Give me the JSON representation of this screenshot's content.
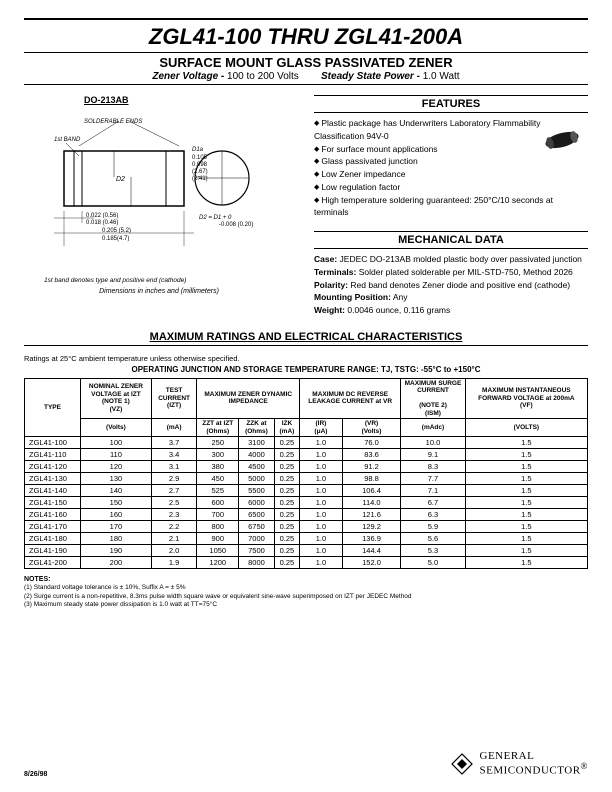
{
  "header": {
    "title": "ZGL41-100 THRU ZGL41-200A",
    "subtitle": "SURFACE MOUNT GLASS PASSIVATED ZENER",
    "spec1_label": "Zener Voltage -",
    "spec1_val": "100 to 200 Volts",
    "spec2_label": "Steady State Power -",
    "spec2_val": "1.0 Watt"
  },
  "package": {
    "label": "DO-213AB",
    "solderable": "SOLDERABLE ENDS",
    "first_band": "1st BAND",
    "d2_label": "D2",
    "d1a": "D1a",
    "dim1": "0.105",
    "dim2": "0.098",
    "dim3": "(2.67)",
    "dim4": "(2.41)",
    "w1": "0.022 (0.56)",
    "w2": "0.018 (0.46)",
    "len1": "0.205 (5.2)",
    "len2": "0.185(4.7)",
    "d2eq": "D2 = D1 + 0\n-0.008 (0.20)",
    "band_note": "1st band denotes type and positive end (cathode)",
    "dim_note": "Dimensions in inches and (millimeters)"
  },
  "features": {
    "title": "FEATURES",
    "items": [
      "Plastic package has Underwriters Laboratory Flammability Classification 94V-0",
      "For surface mount applications",
      "Glass passivated junction",
      "Low Zener impedance",
      "Low regulation factor",
      "High temperature soldering guaranteed: 250°C/10 seconds at terminals"
    ]
  },
  "mechanical": {
    "title": "MECHANICAL DATA",
    "case_label": "Case:",
    "case_val": "JEDEC DO-213AB molded plastic body over passivated junction",
    "term_label": "Terminals:",
    "term_val": "Solder plated solderable per MIL-STD-750, Method 2026",
    "pol_label": "Polarity:",
    "pol_val": "Red band denotes Zener diode and positive end (cathode)",
    "mount_label": "Mounting Position:",
    "mount_val": "Any",
    "weight_label": "Weight:",
    "weight_val": "0.0046 ounce, 0.116 grams"
  },
  "ratings": {
    "title": "MAXIMUM RATINGS AND ELECTRICAL CHARACTERISTICS",
    "note": "Ratings at 25°C ambient temperature unless otherwise specified.",
    "temp_range": "OPERATING JUNCTION AND STORAGE TEMPERATURE RANGE: TJ, TSTG: -55°C to +150°C",
    "headers": {
      "type": "TYPE",
      "vz_top": "NOMINAL ZENER VOLTAGE at IZT",
      "vz_note": "(NOTE 1)",
      "vz_sym": "(VZ)",
      "vz_unit": "(Volts)",
      "izt_top": "TEST CURRENT",
      "izt_sym": "(IZT)",
      "izt_unit": "(mA)",
      "zdyn_top": "MAXIMUM ZENER DYNAMIC IMPEDANCE",
      "zzt": "ZZT at IZT",
      "zzk": "ZZK  at",
      "izk": "IZK",
      "ohms": "(Ohms)",
      "ma": "(mA)",
      "leak_top": "MAXIMUM DC REVERSE LEAKAGE CURRENT at VR",
      "ir": "(IR)",
      "vr": "(VR)",
      "ua": "(μA)",
      "volts": "(Volts)",
      "surge_top": "MAXIMUM SURGE CURRENT",
      "surge_note": "(NOTE 2)",
      "ism": "(ISM)",
      "madc": "(mAdc)",
      "vf_top": "MAXIMUM INSTANTANEOUS FORWARD VOLTAGE at 200mA",
      "vf_sym": "(VF)",
      "vf_unit": "(VOLTS)"
    },
    "rows": [
      {
        "type": "ZGL41-100",
        "vz": "100",
        "izt": "3.7",
        "zzt": "250",
        "zzk": "3100",
        "izk": "0.25",
        "ir": "1.0",
        "vr": "76.0",
        "ism": "10.0",
        "vf": "1.5"
      },
      {
        "type": "ZGL41-110",
        "vz": "110",
        "izt": "3.4",
        "zzt": "300",
        "zzk": "4000",
        "izk": "0.25",
        "ir": "1.0",
        "vr": "83.6",
        "ism": "9.1",
        "vf": "1.5"
      },
      {
        "type": "ZGL41-120",
        "vz": "120",
        "izt": "3.1",
        "zzt": "380",
        "zzk": "4500",
        "izk": "0.25",
        "ir": "1.0",
        "vr": "91.2",
        "ism": "8.3",
        "vf": "1.5"
      },
      {
        "type": "ZGL41-130",
        "vz": "130",
        "izt": "2.9",
        "zzt": "450",
        "zzk": "5000",
        "izk": "0.25",
        "ir": "1.0",
        "vr": "98.8",
        "ism": "7.7",
        "vf": "1.5"
      },
      {
        "type": "ZGL41-140",
        "vz": "140",
        "izt": "2.7",
        "zzt": "525",
        "zzk": "5500",
        "izk": "0.25",
        "ir": "1.0",
        "vr": "106.4",
        "ism": "7.1",
        "vf": "1.5"
      },
      {
        "type": "ZGL41-150",
        "vz": "150",
        "izt": "2.5",
        "zzt": "600",
        "zzk": "6000",
        "izk": "0.25",
        "ir": "1.0",
        "vr": "114.0",
        "ism": "6.7",
        "vf": "1.5"
      },
      {
        "type": "ZGL41-160",
        "vz": "160",
        "izt": "2.3",
        "zzt": "700",
        "zzk": "6500",
        "izk": "0.25",
        "ir": "1.0",
        "vr": "121.6",
        "ism": "6.3",
        "vf": "1.5"
      },
      {
        "type": "ZGL41-170",
        "vz": "170",
        "izt": "2.2",
        "zzt": "800",
        "zzk": "6750",
        "izk": "0.25",
        "ir": "1.0",
        "vr": "129.2",
        "ism": "5.9",
        "vf": "1.5"
      },
      {
        "type": "ZGL41-180",
        "vz": "180",
        "izt": "2.1",
        "zzt": "900",
        "zzk": "7000",
        "izk": "0.25",
        "ir": "1.0",
        "vr": "136.9",
        "ism": "5.6",
        "vf": "1.5"
      },
      {
        "type": "ZGL41-190",
        "vz": "190",
        "izt": "2.0",
        "zzt": "1050",
        "zzk": "7500",
        "izk": "0.25",
        "ir": "1.0",
        "vr": "144.4",
        "ism": "5.3",
        "vf": "1.5"
      },
      {
        "type": "ZGL41-200",
        "vz": "200",
        "izt": "1.9",
        "zzt": "1200",
        "zzk": "8000",
        "izk": "0.25",
        "ir": "1.0",
        "vr": "152.0",
        "ism": "5.0",
        "vf": "1.5"
      }
    ]
  },
  "notes": {
    "label": "NOTES:",
    "n1": "(1) Standard voltage tolerance is ± 10%, Suffix A = ± 5%",
    "n2": "(2) Surge current is a non-repetitive, 8.3ms pulse width square wave or equivalent sine-wave superimposed on IZT per JEDEC Method",
    "n3": "(3) Maximum steady state power dissipation is 1.0 watt at TT=75°C"
  },
  "footer": {
    "date": "8/26/98",
    "logo1": "GENERAL",
    "logo2": "SEMICONDUCTOR"
  }
}
